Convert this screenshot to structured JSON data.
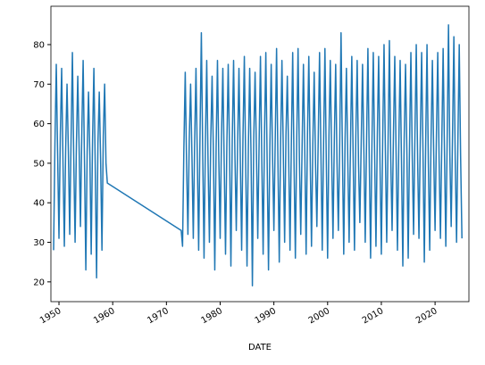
{
  "chart_data": {
    "type": "line",
    "x_label": "DATE",
    "x": [
      1949,
      1949.25,
      1949.5,
      1949.75,
      1950,
      1950.25,
      1950.5,
      1950.75,
      1951,
      1951.25,
      1951.5,
      1951.75,
      1952,
      1952.25,
      1952.5,
      1952.75,
      1953,
      1953.25,
      1953.5,
      1953.75,
      1954,
      1954.25,
      1954.5,
      1954.75,
      1955,
      1955.25,
      1955.5,
      1955.75,
      1956,
      1956.25,
      1956.5,
      1956.75,
      1957,
      1957.25,
      1957.5,
      1957.75,
      1958,
      1958.25,
      1958.5,
      1958.75,
      1959,
      1972.75,
      1973,
      1973.25,
      1973.5,
      1973.75,
      1974,
      1974.25,
      1974.5,
      1974.75,
      1975,
      1975.25,
      1975.5,
      1975.75,
      1976,
      1976.25,
      1976.5,
      1976.75,
      1977,
      1977.25,
      1977.5,
      1977.75,
      1978,
      1978.25,
      1978.5,
      1978.75,
      1979,
      1979.25,
      1979.5,
      1979.75,
      1980,
      1980.25,
      1980.5,
      1980.75,
      1981,
      1981.25,
      1981.5,
      1981.75,
      1982,
      1982.25,
      1982.5,
      1982.75,
      1983,
      1983.25,
      1983.5,
      1983.75,
      1984,
      1984.25,
      1984.5,
      1984.75,
      1985,
      1985.25,
      1985.5,
      1985.75,
      1986,
      1986.25,
      1986.5,
      1986.75,
      1987,
      1987.25,
      1987.5,
      1987.75,
      1988,
      1988.25,
      1988.5,
      1988.75,
      1989,
      1989.25,
      1989.5,
      1989.75,
      1990,
      1990.25,
      1990.5,
      1990.75,
      1991,
      1991.25,
      1991.5,
      1991.75,
      1992,
      1992.25,
      1992.5,
      1992.75,
      1993,
      1993.25,
      1993.5,
      1993.75,
      1994,
      1994.25,
      1994.5,
      1994.75,
      1995,
      1995.25,
      1995.5,
      1995.75,
      1996,
      1996.25,
      1996.5,
      1996.75,
      1997,
      1997.25,
      1997.5,
      1997.75,
      1998,
      1998.25,
      1998.5,
      1998.75,
      1999,
      1999.25,
      1999.5,
      1999.75,
      2000,
      2000.25,
      2000.5,
      2000.75,
      2001,
      2001.25,
      2001.5,
      2001.75,
      2002,
      2002.25,
      2002.5,
      2002.75,
      2003,
      2003.25,
      2003.5,
      2003.75,
      2004,
      2004.25,
      2004.5,
      2004.75,
      2005,
      2005.25,
      2005.5,
      2005.75,
      2006,
      2006.25,
      2006.5,
      2006.75,
      2007,
      2007.25,
      2007.5,
      2007.75,
      2008,
      2008.25,
      2008.5,
      2008.75,
      2009,
      2009.25,
      2009.5,
      2009.75,
      2010,
      2010.25,
      2010.5,
      2010.75,
      2011,
      2011.25,
      2011.5,
      2011.75,
      2012,
      2012.25,
      2012.5,
      2012.75,
      2013,
      2013.25,
      2013.5,
      2013.75,
      2014,
      2014.25,
      2014.5,
      2014.75,
      2015,
      2015.25,
      2015.5,
      2015.75,
      2016,
      2016.25,
      2016.5,
      2016.75,
      2017,
      2017.25,
      2017.5,
      2017.75,
      2018,
      2018.25,
      2018.5,
      2018.75,
      2019,
      2019.25,
      2019.5,
      2019.75,
      2020,
      2020.25,
      2020.5,
      2020.75,
      2021,
      2021.25,
      2021.5,
      2021.75,
      2022,
      2022.25,
      2022.5,
      2022.75,
      2023,
      2023.25,
      2023.5,
      2023.75,
      2024,
      2024.25,
      2024.5,
      2024.75,
      2025
    ],
    "series": [
      {
        "color": "#1f77b4",
        "values": [
          28,
          55,
          75,
          52,
          31,
          57,
          74,
          50,
          29,
          54,
          70,
          53,
          32,
          56,
          78,
          51,
          30,
          55,
          72,
          54,
          34,
          58,
          76,
          50,
          23,
          53,
          68,
          52,
          27,
          56,
          74,
          49,
          21,
          55,
          68,
          51,
          28,
          57,
          70,
          50,
          45,
          33,
          29,
          54,
          73,
          50,
          32,
          56,
          70,
          52,
          31,
          55,
          74,
          51,
          28,
          57,
          83,
          53,
          26,
          55,
          76,
          50,
          30,
          56,
          72,
          52,
          23,
          54,
          76,
          51,
          31,
          57,
          74,
          50,
          27,
          55,
          75,
          53,
          24,
          56,
          76,
          52,
          33,
          55,
          74,
          51,
          28,
          57,
          77,
          50,
          24,
          54,
          74,
          52,
          19,
          56,
          73,
          53,
          31,
          55,
          77,
          51,
          27,
          57,
          78,
          50,
          23,
          54,
          75,
          52,
          33,
          56,
          79,
          51,
          25,
          55,
          76,
          53,
          30,
          57,
          72,
          52,
          28,
          55,
          78,
          50,
          26,
          56,
          79,
          51,
          32,
          54,
          75,
          53,
          27,
          57,
          77,
          52,
          29,
          55,
          73,
          50,
          34,
          56,
          78,
          53,
          28,
          55,
          79,
          51,
          26,
          57,
          76,
          52,
          31,
          56,
          75,
          50,
          33,
          55,
          83,
          53,
          27,
          56,
          74,
          51,
          30,
          54,
          77,
          52,
          28,
          57,
          76,
          50,
          35,
          55,
          75,
          53,
          30,
          56,
          79,
          51,
          26,
          55,
          78,
          52,
          29,
          57,
          77,
          50,
          27,
          56,
          80,
          53,
          30,
          55,
          81,
          51,
          33,
          57,
          77,
          52,
          28,
          55,
          76,
          50,
          24,
          56,
          75,
          53,
          26,
          55,
          78,
          52,
          32,
          57,
          80,
          51,
          31,
          56,
          78,
          53,
          25,
          55,
          80,
          50,
          28,
          56,
          76,
          52,
          33,
          57,
          78,
          51,
          31,
          55,
          79,
          53,
          29,
          56,
          85,
          52,
          34,
          57,
          82,
          51,
          30,
          56,
          80,
          52,
          31
        ]
      }
    ],
    "xlim": [
      1948.5,
      2026.3
    ],
    "xticks": [
      1950,
      1960,
      1970,
      1980,
      1990,
      2000,
      2010,
      2020
    ],
    "ylim": [
      15,
      89.7
    ],
    "yticks": [
      20,
      30,
      40,
      50,
      60,
      70,
      80
    ]
  }
}
